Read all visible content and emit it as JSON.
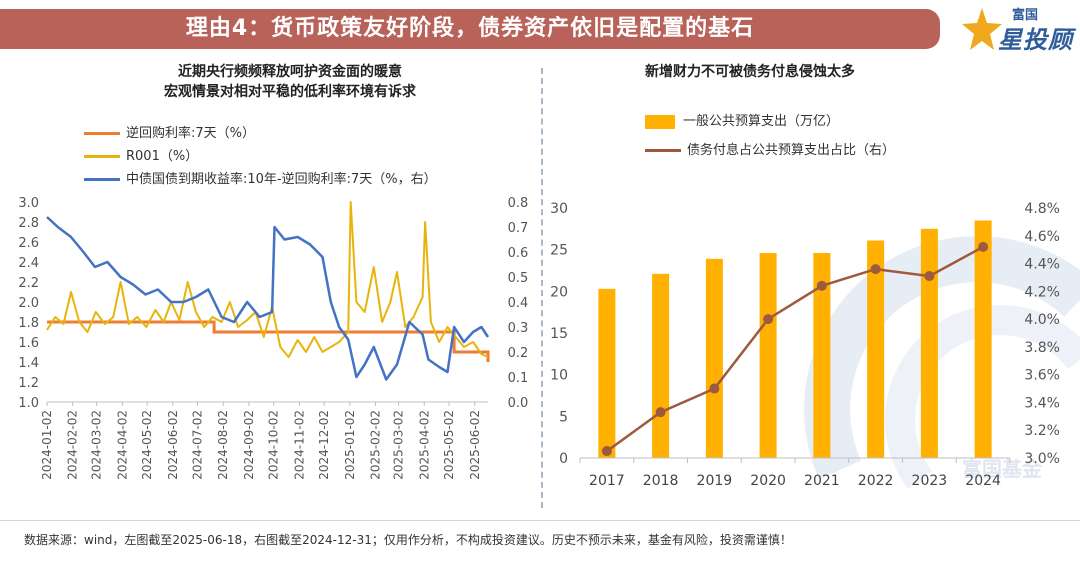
{
  "header": {
    "title": "理由4：货币政策友好阶段，债券资产依旧是配置的基石"
  },
  "logo": {
    "small": "富国",
    "main": "星投顾"
  },
  "footer": {
    "note": "数据来源：wind，左图截至2025-06-18，右图截至2024-12-31；仅用作分析，不构成投资建议。历史不预示未来，基金有风险，投资需谨慎！"
  },
  "watermark": "富国基金",
  "chart_data": [
    {
      "type": "line",
      "title_lines": [
        "近期央行频频释放呵护资金面的暖意",
        "宏观情景对相对平稳的低利率环境有诉求"
      ],
      "x_ticks": [
        "2024-01-02",
        "2024-02-02",
        "2024-03-02",
        "2024-04-02",
        "2024-05-02",
        "2024-06-02",
        "2024-07-02",
        "2024-08-02",
        "2024-09-02",
        "2024-10-02",
        "2024-11-02",
        "2024-12-02",
        "2025-01-02",
        "2025-02-02",
        "2025-03-02",
        "2025-04-02",
        "2025-05-02",
        "2025-06-02"
      ],
      "x_range": [
        "2024-01-02",
        "2025-06-18"
      ],
      "y_left": {
        "ticks": [
          "3.0",
          "2.8",
          "2.6",
          "2.4",
          "2.2",
          "2.0",
          "1.8",
          "1.6",
          "1.4",
          "1.2",
          "1.0"
        ],
        "lim": [
          1.0,
          3.0
        ]
      },
      "y_right": {
        "ticks": [
          "0.8",
          "0.7",
          "0.6",
          "0.5",
          "0.4",
          "0.3",
          "0.2",
          "0.1",
          "0.0"
        ],
        "lim": [
          0.0,
          0.8
        ]
      },
      "colors": {
        "repo": "#ed7d31",
        "r001": "#e8b40c",
        "spread": "#4472c4"
      },
      "series": [
        {
          "name": "逆回购利率:7天（%）",
          "axis": "left",
          "step": true,
          "x": [
            "2024-01-02",
            "2024-06-30",
            "2024-07-22",
            "2025-05-08",
            "2025-06-18"
          ],
          "y": [
            1.8,
            1.8,
            1.7,
            1.5,
            1.4
          ]
        },
        {
          "name": "R001（%）",
          "axis": "left",
          "x": [
            "2024-01-02",
            "2024-01-12",
            "2024-01-22",
            "2024-01-31",
            "2024-02-10",
            "2024-02-20",
            "2024-03-01",
            "2024-03-12",
            "2024-03-22",
            "2024-03-31",
            "2024-04-10",
            "2024-04-20",
            "2024-05-01",
            "2024-05-12",
            "2024-05-22",
            "2024-05-31",
            "2024-06-10",
            "2024-06-20",
            "2024-06-30",
            "2024-07-10",
            "2024-07-20",
            "2024-07-31",
            "2024-08-10",
            "2024-08-20",
            "2024-08-31",
            "2024-09-10",
            "2024-09-20",
            "2024-09-30",
            "2024-10-10",
            "2024-10-20",
            "2024-10-31",
            "2024-11-10",
            "2024-11-20",
            "2024-11-30",
            "2024-12-10",
            "2024-12-20",
            "2024-12-31",
            "2025-01-03",
            "2025-01-10",
            "2025-01-20",
            "2025-01-31",
            "2025-02-10",
            "2025-02-20",
            "2025-02-28",
            "2025-03-10",
            "2025-03-20",
            "2025-03-31",
            "2025-04-03",
            "2025-04-10",
            "2025-04-20",
            "2025-04-30",
            "2025-05-10",
            "2025-05-20",
            "2025-05-31",
            "2025-06-10",
            "2025-06-18"
          ],
          "y": [
            1.72,
            1.85,
            1.78,
            2.1,
            1.8,
            1.7,
            1.9,
            1.78,
            1.85,
            2.2,
            1.78,
            1.85,
            1.75,
            1.92,
            1.8,
            2.0,
            1.82,
            2.2,
            1.9,
            1.75,
            1.85,
            1.8,
            2.0,
            1.75,
            1.82,
            1.9,
            1.65,
            1.95,
            1.55,
            1.45,
            1.62,
            1.5,
            1.65,
            1.5,
            1.55,
            1.6,
            1.7,
            3.0,
            2.0,
            1.9,
            2.35,
            1.8,
            2.0,
            2.3,
            1.75,
            1.85,
            2.05,
            2.8,
            1.8,
            1.6,
            1.75,
            1.65,
            1.55,
            1.6,
            1.48,
            1.45
          ]
        },
        {
          "name": "中债国债到期收益率:10年-逆回购利率:7天（%，右）",
          "axis": "right",
          "x": [
            "2024-01-02",
            "2024-01-15",
            "2024-01-31",
            "2024-02-15",
            "2024-02-29",
            "2024-03-15",
            "2024-03-31",
            "2024-04-15",
            "2024-04-30",
            "2024-05-15",
            "2024-05-31",
            "2024-06-15",
            "2024-06-30",
            "2024-07-15",
            "2024-07-31",
            "2024-08-15",
            "2024-08-31",
            "2024-09-15",
            "2024-09-30",
            "2024-10-03",
            "2024-10-15",
            "2024-10-31",
            "2024-11-15",
            "2024-11-30",
            "2024-12-10",
            "2024-12-20",
            "2024-12-31",
            "2025-01-10",
            "2025-01-20",
            "2025-01-31",
            "2025-02-15",
            "2025-02-28",
            "2025-03-15",
            "2025-03-31",
            "2025-04-07",
            "2025-04-20",
            "2025-04-30",
            "2025-05-08",
            "2025-05-20",
            "2025-05-31",
            "2025-06-10",
            "2025-06-18"
          ],
          "y": [
            0.74,
            0.7,
            0.66,
            0.6,
            0.54,
            0.56,
            0.5,
            0.47,
            0.43,
            0.45,
            0.4,
            0.4,
            0.42,
            0.45,
            0.34,
            0.32,
            0.4,
            0.34,
            0.36,
            0.7,
            0.65,
            0.66,
            0.63,
            0.58,
            0.4,
            0.3,
            0.25,
            0.1,
            0.15,
            0.22,
            0.09,
            0.15,
            0.32,
            0.27,
            0.17,
            0.14,
            0.12,
            0.3,
            0.24,
            0.28,
            0.3,
            0.26
          ]
        }
      ]
    },
    {
      "type": "bar+line",
      "title": "新增财力不可被债务付息侵蚀太多",
      "categories": [
        "2017",
        "2018",
        "2019",
        "2020",
        "2021",
        "2022",
        "2023",
        "2024"
      ],
      "y_left": {
        "ticks": [
          "30",
          "25",
          "20",
          "15",
          "10",
          "5",
          "0"
        ],
        "lim": [
          0,
          30
        ]
      },
      "y_right": {
        "ticks": [
          "4.8%",
          "4.6%",
          "4.4%",
          "4.2%",
          "4.0%",
          "3.8%",
          "3.6%",
          "3.4%",
          "3.2%",
          "3.0%"
        ],
        "lim": [
          3.0,
          4.8
        ]
      },
      "colors": {
        "bar": "#ffb000",
        "line": "#9e5a3e"
      },
      "series": [
        {
          "name": "一般公共预算支出（万亿）",
          "type": "bar",
          "axis": "left",
          "values": [
            20.3,
            22.1,
            23.9,
            24.6,
            24.6,
            26.1,
            27.5,
            28.5
          ]
        },
        {
          "name": "债务付息占公共预算支出占比（右）",
          "type": "line",
          "axis": "right",
          "values": [
            3.05,
            3.33,
            3.5,
            4.0,
            4.24,
            4.36,
            4.31,
            4.52
          ]
        }
      ]
    }
  ]
}
